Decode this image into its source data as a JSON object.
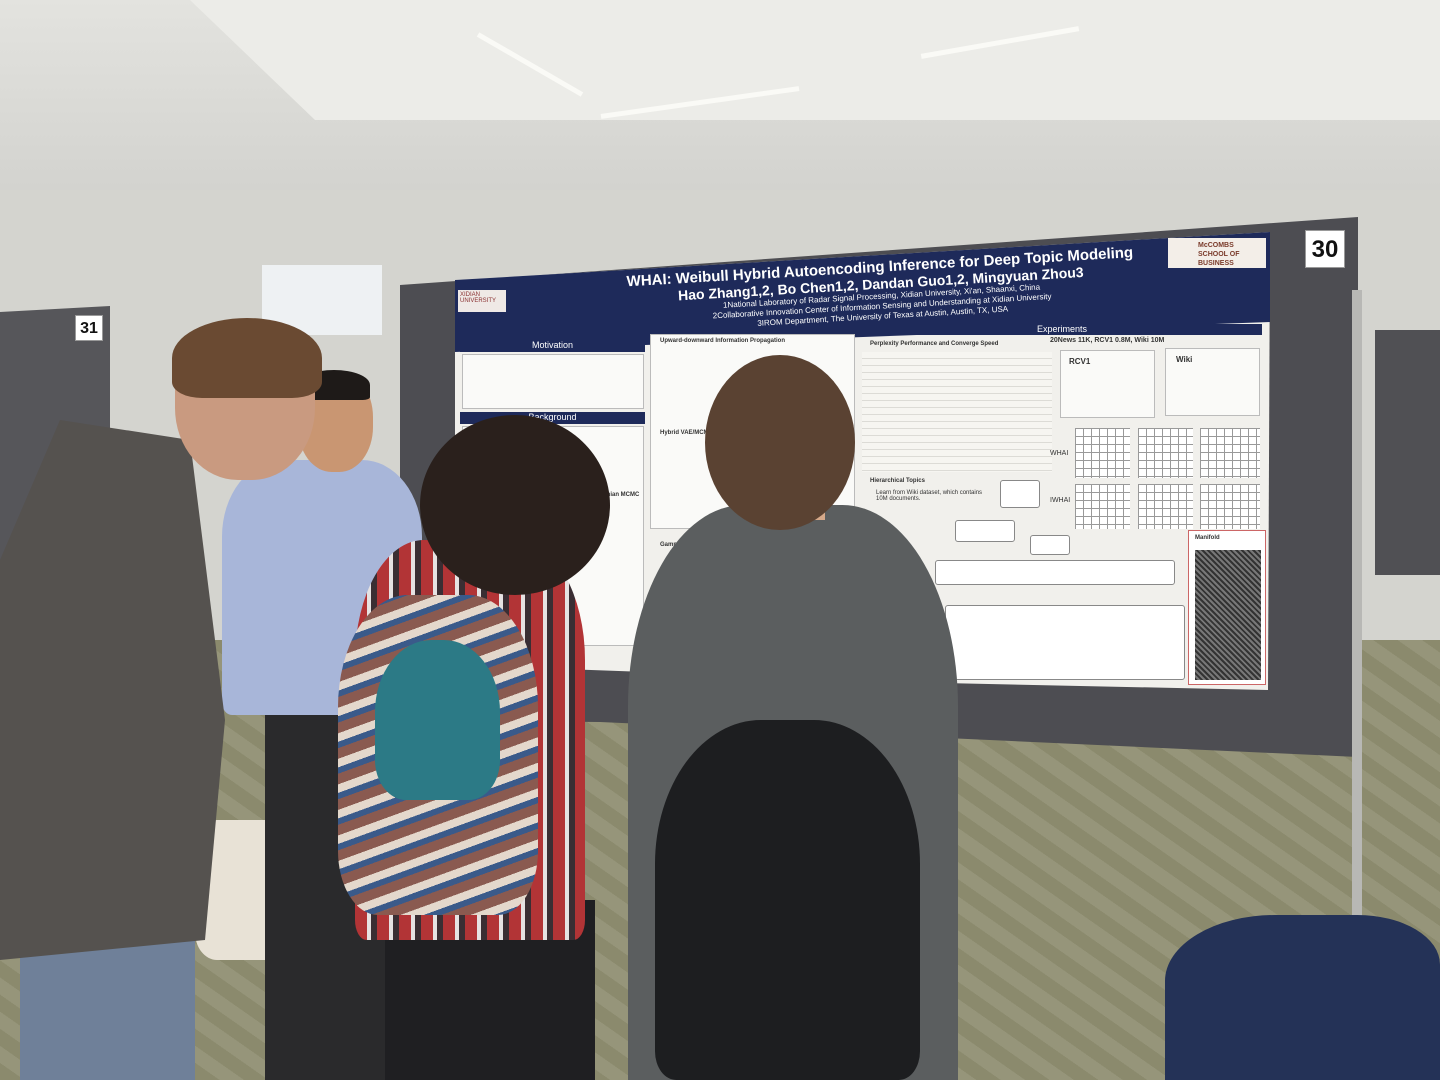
{
  "scene": {
    "booth_numbers": [
      "30",
      "31"
    ]
  },
  "poster": {
    "title": "WHAI: Weibull Hybrid Autoencoding Inference for Deep Topic Modeling",
    "authors": "Hao Zhang1,2, Bo Chen1,2, Dandan Guo1,2, Mingyuan Zhou3",
    "affiliation_1": "1National Laboratory of Radar Signal Processing, Xidian University, Xi'an, Shaanxi, China",
    "affiliation_2": "2Collaborative Innovation Center of Information Sensing and Understanding at Xidian University",
    "affiliation_3": "3IROM Department, The University of Texas at Austin, Austin, TX, USA",
    "logo_left": "XIDIAN UNIVERSITY",
    "logo_right": "McCOMBS SCHOOL OF BUSINESS",
    "sections": {
      "motivation": "Motivation",
      "background": "Background",
      "upward_downward": "Upward-downward Information Propagation",
      "hybrid": "Hybrid VAE/MCMC",
      "gamma": "Gamma",
      "riemannian": "Riemannian MCMC",
      "experiments": "Experiments",
      "perplexity": "Perplexity Performance and Converge Speed",
      "datasets": "20News 11K, RCV1 0.8M, Wiki 10M",
      "rcv1": "RCV1",
      "wiki": "Wiki",
      "whai": "WHAI",
      "iwhai": "IWHAI",
      "hierarchical": "Hierarchical Topics",
      "hierarchical_desc": "Learn from Wiki dataset, which contains 10M documents.",
      "manifold": "Manifold"
    }
  }
}
